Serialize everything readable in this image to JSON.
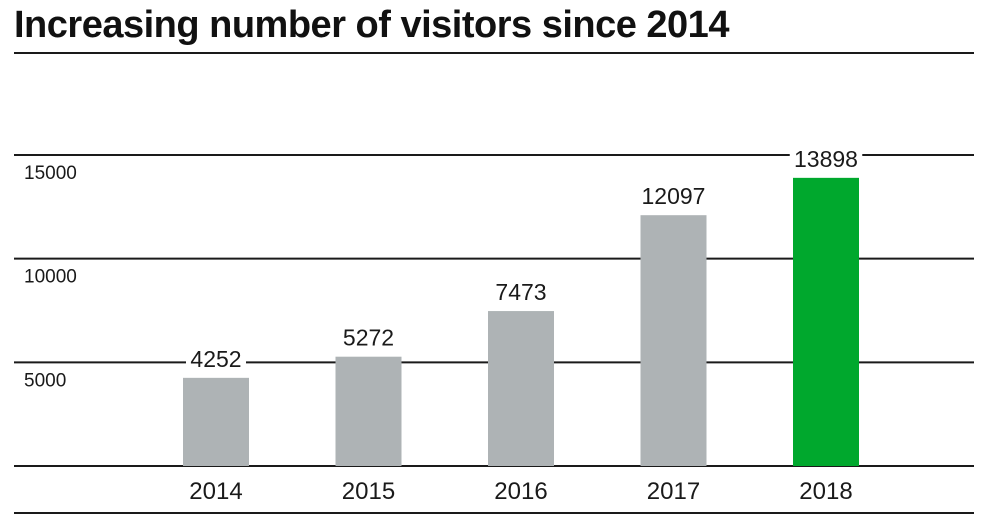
{
  "title": "Increasing number of visitors since 2014",
  "chart_data": {
    "type": "bar",
    "title": "Increasing number of visitors since 2014",
    "xlabel": "",
    "ylabel": "",
    "categories": [
      "2014",
      "2015",
      "2016",
      "2017",
      "2018"
    ],
    "values": [
      4252,
      5272,
      7473,
      12097,
      13898
    ],
    "data_labels": [
      "4252",
      "5272",
      "7473",
      "12097",
      "13898"
    ],
    "yticks": [
      5000,
      10000,
      15000
    ],
    "ytick_labels": [
      "5000",
      "10000",
      "15000"
    ],
    "ylim": [
      0,
      15000
    ],
    "grid": true,
    "legend": "none",
    "colors": {
      "default_bar": "#aeb3b5",
      "highlight_bar": "#00a82d",
      "axis": "#1a1a1a"
    },
    "highlight_index": 4
  }
}
